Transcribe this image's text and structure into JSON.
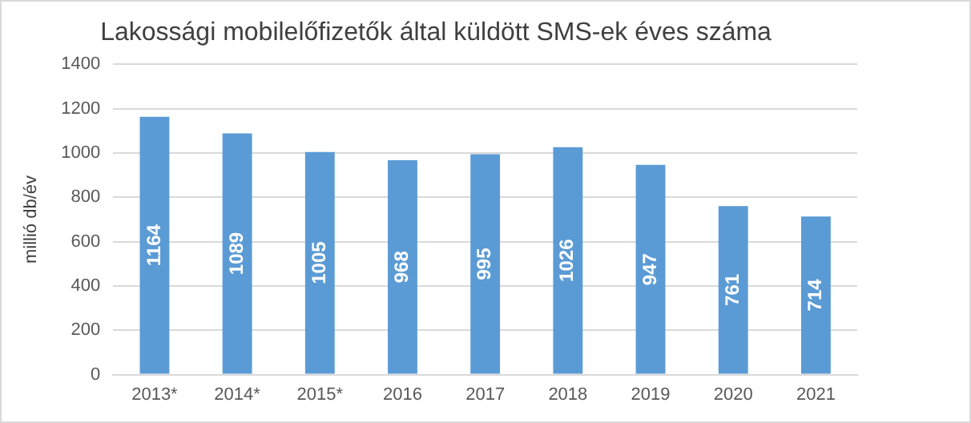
{
  "chart_data": {
    "type": "bar",
    "title": "Lakossági mobilelőfizetők által küldött SMS-ek éves száma",
    "ylabel": "millió db/év",
    "categories": [
      "2013*",
      "2014*",
      "2015*",
      "2016",
      "2017",
      "2018",
      "2019",
      "2020",
      "2021"
    ],
    "values": [
      1164,
      1089,
      1005,
      968,
      995,
      1026,
      947,
      761,
      714
    ],
    "color": "#5b9bd5",
    "ylim": [
      0,
      1400
    ],
    "yticks": [
      0,
      200,
      400,
      600,
      800,
      1000,
      1200,
      1400
    ],
    "grid": "y",
    "data_labels": true
  }
}
